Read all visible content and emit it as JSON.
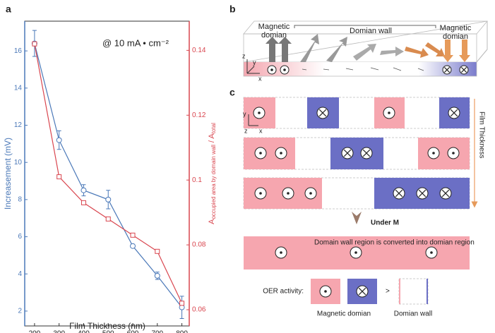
{
  "chart_data": {
    "type": "line",
    "panel": "a",
    "xlabel": "Film Thickness (nm)",
    "ylabel": "Increasement (mV)",
    "y2label": [
      "A",
      "occupied area by domain wall",
      " / A",
      "total"
    ],
    "annotation": "@ 10 mA • cm⁻²",
    "x": [
      200,
      300,
      400,
      500,
      600,
      700,
      800
    ],
    "xlim": [
      160,
      830
    ],
    "xticks": [
      200,
      300,
      400,
      500,
      600,
      700,
      800
    ],
    "ylim": [
      1.2,
      17.6
    ],
    "yticks": [
      2,
      4,
      6,
      8,
      10,
      12,
      14,
      16
    ],
    "y2lim": [
      0.055,
      0.149
    ],
    "y2ticks": [
      0.06,
      0.08,
      0.1,
      0.12,
      0.14
    ],
    "series": [
      {
        "color": "#4a78b8",
        "marker": "circle",
        "values": [
          16.4,
          11.2,
          8.5,
          8.0,
          5.5,
          3.9,
          2.2
        ],
        "errors": [
          0.7,
          0.5,
          0.3,
          0.5,
          0,
          0.2,
          0.6
        ]
      },
      {
        "color": "#d9464f",
        "marker": "square",
        "axis": "y2",
        "values": [
          0.142,
          0.101,
          0.093,
          0.088,
          0.083,
          0.078,
          0.062
        ]
      }
    ]
  },
  "panel_b": {
    "label": "b",
    "magnetic_domain": [
      "Magnetic",
      "domian"
    ],
    "domain_wall": "Domian wall",
    "axes": [
      "z",
      "y",
      "x"
    ]
  },
  "panel_c": {
    "label": "c",
    "axes": [
      "y",
      "z",
      "x"
    ],
    "film_thickness": "Film Thickness",
    "under_m": "Under M",
    "converted": "Domain wall region is converted into domian region",
    "oer": "OER activity:",
    "greater": ">",
    "legend_domain": "Magnetic domian",
    "legend_wall": "Domian wall"
  }
}
